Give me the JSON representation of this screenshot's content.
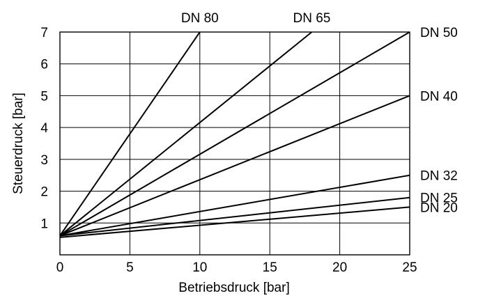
{
  "chart_data": {
    "type": "line",
    "title": "",
    "xlabel": "Betriebsdruck [bar]",
    "ylabel": "Steuerdruck [bar]",
    "xlim": [
      0,
      25
    ],
    "ylim": [
      0,
      7
    ],
    "xticks": [
      0,
      5,
      10,
      15,
      20,
      25
    ],
    "yticks": [
      1,
      2,
      3,
      4,
      5,
      6,
      7
    ],
    "grid": true,
    "series": [
      {
        "name": "DN 80",
        "x": [
          0,
          10
        ],
        "y": [
          0.6,
          7.0
        ]
      },
      {
        "name": "DN 65",
        "x": [
          0,
          18
        ],
        "y": [
          0.6,
          7.0
        ]
      },
      {
        "name": "DN 50",
        "x": [
          0,
          25
        ],
        "y": [
          0.6,
          7.0
        ]
      },
      {
        "name": "DN 40",
        "x": [
          0,
          25
        ],
        "y": [
          0.6,
          5.0
        ]
      },
      {
        "name": "DN 32",
        "x": [
          0,
          25
        ],
        "y": [
          0.6,
          2.5
        ]
      },
      {
        "name": "DN 25",
        "x": [
          0,
          25
        ],
        "y": [
          0.6,
          1.8
        ]
      },
      {
        "name": "DN 20",
        "x": [
          0,
          25
        ],
        "y": [
          0.55,
          1.5
        ]
      }
    ]
  }
}
